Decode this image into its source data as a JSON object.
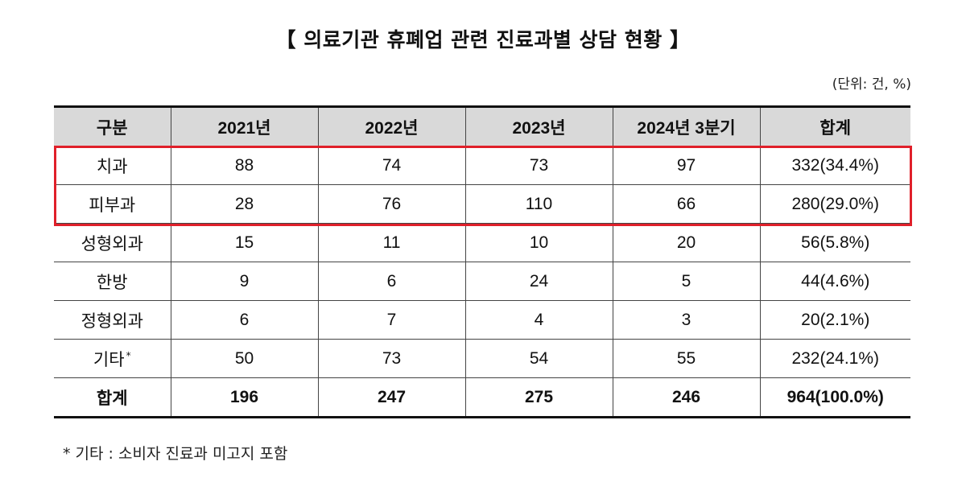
{
  "title": "【 의료기관 휴폐업 관련 진료과별 상담 현황 】",
  "unit": "(단위: 건, %)",
  "table": {
    "headers": [
      "구분",
      "2021년",
      "2022년",
      "2023년",
      "2024년 3분기",
      "합계"
    ],
    "rows": [
      {
        "label": "치과",
        "values": [
          "88",
          "74",
          "73",
          "97",
          "332(34.4%)"
        ]
      },
      {
        "label": "피부과",
        "values": [
          "28",
          "76",
          "110",
          "66",
          "280(29.0%)"
        ]
      },
      {
        "label": "성형외과",
        "values": [
          "15",
          "11",
          "10",
          "20",
          "56(5.8%)"
        ]
      },
      {
        "label": "한방",
        "values": [
          "9",
          "6",
          "24",
          "5",
          "44(4.6%)"
        ]
      },
      {
        "label": "정형외과",
        "values": [
          "6",
          "7",
          "4",
          "3",
          "20(2.1%)"
        ]
      },
      {
        "label": "기타",
        "mark": "*",
        "values": [
          "50",
          "73",
          "54",
          "55",
          "232(24.1%)"
        ]
      }
    ],
    "total": {
      "label": "합계",
      "values": [
        "196",
        "247",
        "275",
        "246",
        "964(100.0%)"
      ]
    }
  },
  "highlight_color": "#e0202a",
  "header_bg": "#d9d9d9",
  "footnote": "* 기타 : 소비자 진료과 미고지 포함"
}
